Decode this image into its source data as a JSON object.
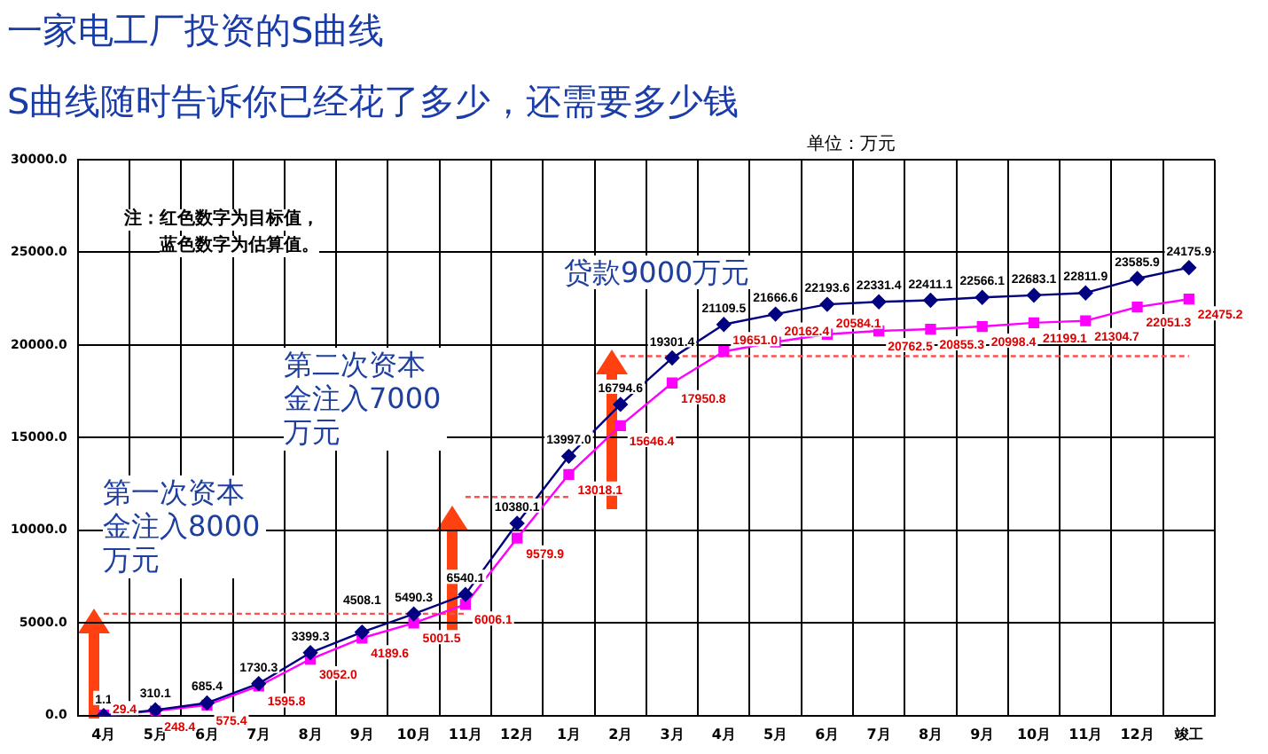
{
  "chart_data": {
    "type": "line",
    "title": "一家电工厂投资的S曲线",
    "subtitle": "S曲线随时告诉你已经花了多少，还需要多少钱",
    "annotations": [
      "单位：万元",
      "注：红色数字为目标值，",
      "蓝色数字为估算值。",
      "第一次资本金注入8000万元",
      "第二次资本金注入7000万元",
      "贷款9000万元"
    ],
    "categories": [
      "4月",
      "5月",
      "6月",
      "7月",
      "8月",
      "9月",
      "10月",
      "11月",
      "12月",
      "1月",
      "2月",
      "3月",
      "4月",
      "5月",
      "6月",
      "7月",
      "8月",
      "9月",
      "10月",
      "11月",
      "12月",
      "竣工"
    ],
    "series": [
      {
        "color": "#000080",
        "marker": "diamond",
        "line_style": "solid",
        "values": [
          1.1,
          310.1,
          685.4,
          1730.3,
          3399.3,
          4508.1,
          5490.3,
          6540.1,
          10380.1,
          13997.0,
          16794.6,
          19301.4,
          21109.5,
          21666.6,
          22193.6,
          22331.4,
          22411.1,
          22566.1,
          22683.1,
          22811.9,
          23585.9,
          24175.9
        ],
        "value_labels": [
          "1.1",
          "310.1",
          "685.4",
          "1730.3",
          "3399.3",
          "4508.1",
          "5490.3",
          "6540.1",
          "10380.1",
          "13997.0",
          "16794.6",
          "19301.4",
          "21109.5",
          "21666.6",
          "22193.6",
          "22331.4",
          "22411.1",
          "22566.1",
          "22683.1",
          "22811.9",
          "23585.9",
          "24175.9"
        ]
      },
      {
        "color": "#ff00ff",
        "marker": "square",
        "line_style": "solid",
        "values": [
          29.4,
          248.4,
          575.4,
          1595.8,
          3052.0,
          4189.6,
          5001.5,
          6006.1,
          9579.9,
          13018.1,
          15646.4,
          17950.8,
          19651.0,
          20162.4,
          20584.1,
          20762.5,
          20855.3,
          20998.4,
          21199.1,
          21304.7,
          22051.3,
          22475.2
        ],
        "value_labels": [
          "29.4",
          "248.4",
          "575.4",
          "1595.8",
          "3052.0",
          "4189.6",
          "5001.5",
          "6006.1",
          "9579.9",
          "13018.1",
          "15646.4",
          "17950.8",
          "19651.0",
          "20162.4",
          "20584.1",
          "20762.5",
          "20855.3",
          "20998.4",
          "21199.1",
          "21304.7",
          "22051.3",
          "22475.2"
        ]
      },
      {
        "color": "#ff5050",
        "marker": "none",
        "line_style": "dashed",
        "values": [
          5500,
          5500,
          5500,
          5500,
          5500,
          5500,
          5500,
          5500,
          null,
          null,
          null,
          null,
          null,
          null,
          null,
          null,
          null,
          null,
          null,
          null,
          null,
          null
        ]
      },
      {
        "color": "#ff5050",
        "marker": "none",
        "line_style": "dashed",
        "values": [
          null,
          null,
          null,
          null,
          null,
          null,
          null,
          11800,
          11800,
          11800,
          null,
          null,
          null,
          null,
          null,
          null,
          null,
          null,
          null,
          null,
          null,
          null
        ]
      },
      {
        "color": "#ff5050",
        "marker": "none",
        "line_style": "dashed",
        "values": [
          null,
          null,
          null,
          null,
          null,
          null,
          null,
          null,
          null,
          null,
          19400,
          19400,
          19400,
          19400,
          19400,
          19400,
          19400,
          19400,
          19400,
          19400,
          19400,
          19400
        ]
      }
    ],
    "ylim": [
      0,
      30000
    ],
    "yticks": [
      {
        "value": 0,
        "label": "0.0"
      },
      {
        "value": 5000,
        "label": "5000.0"
      },
      {
        "value": 10000,
        "label": "10000.0"
      },
      {
        "value": 15000,
        "label": "15000.0"
      },
      {
        "value": 20000,
        "label": "20000.0"
      },
      {
        "value": 25000,
        "label": "25000.0"
      },
      {
        "value": 30000,
        "label": "30000.0"
      }
    ],
    "grid": true,
    "legend": false
  }
}
